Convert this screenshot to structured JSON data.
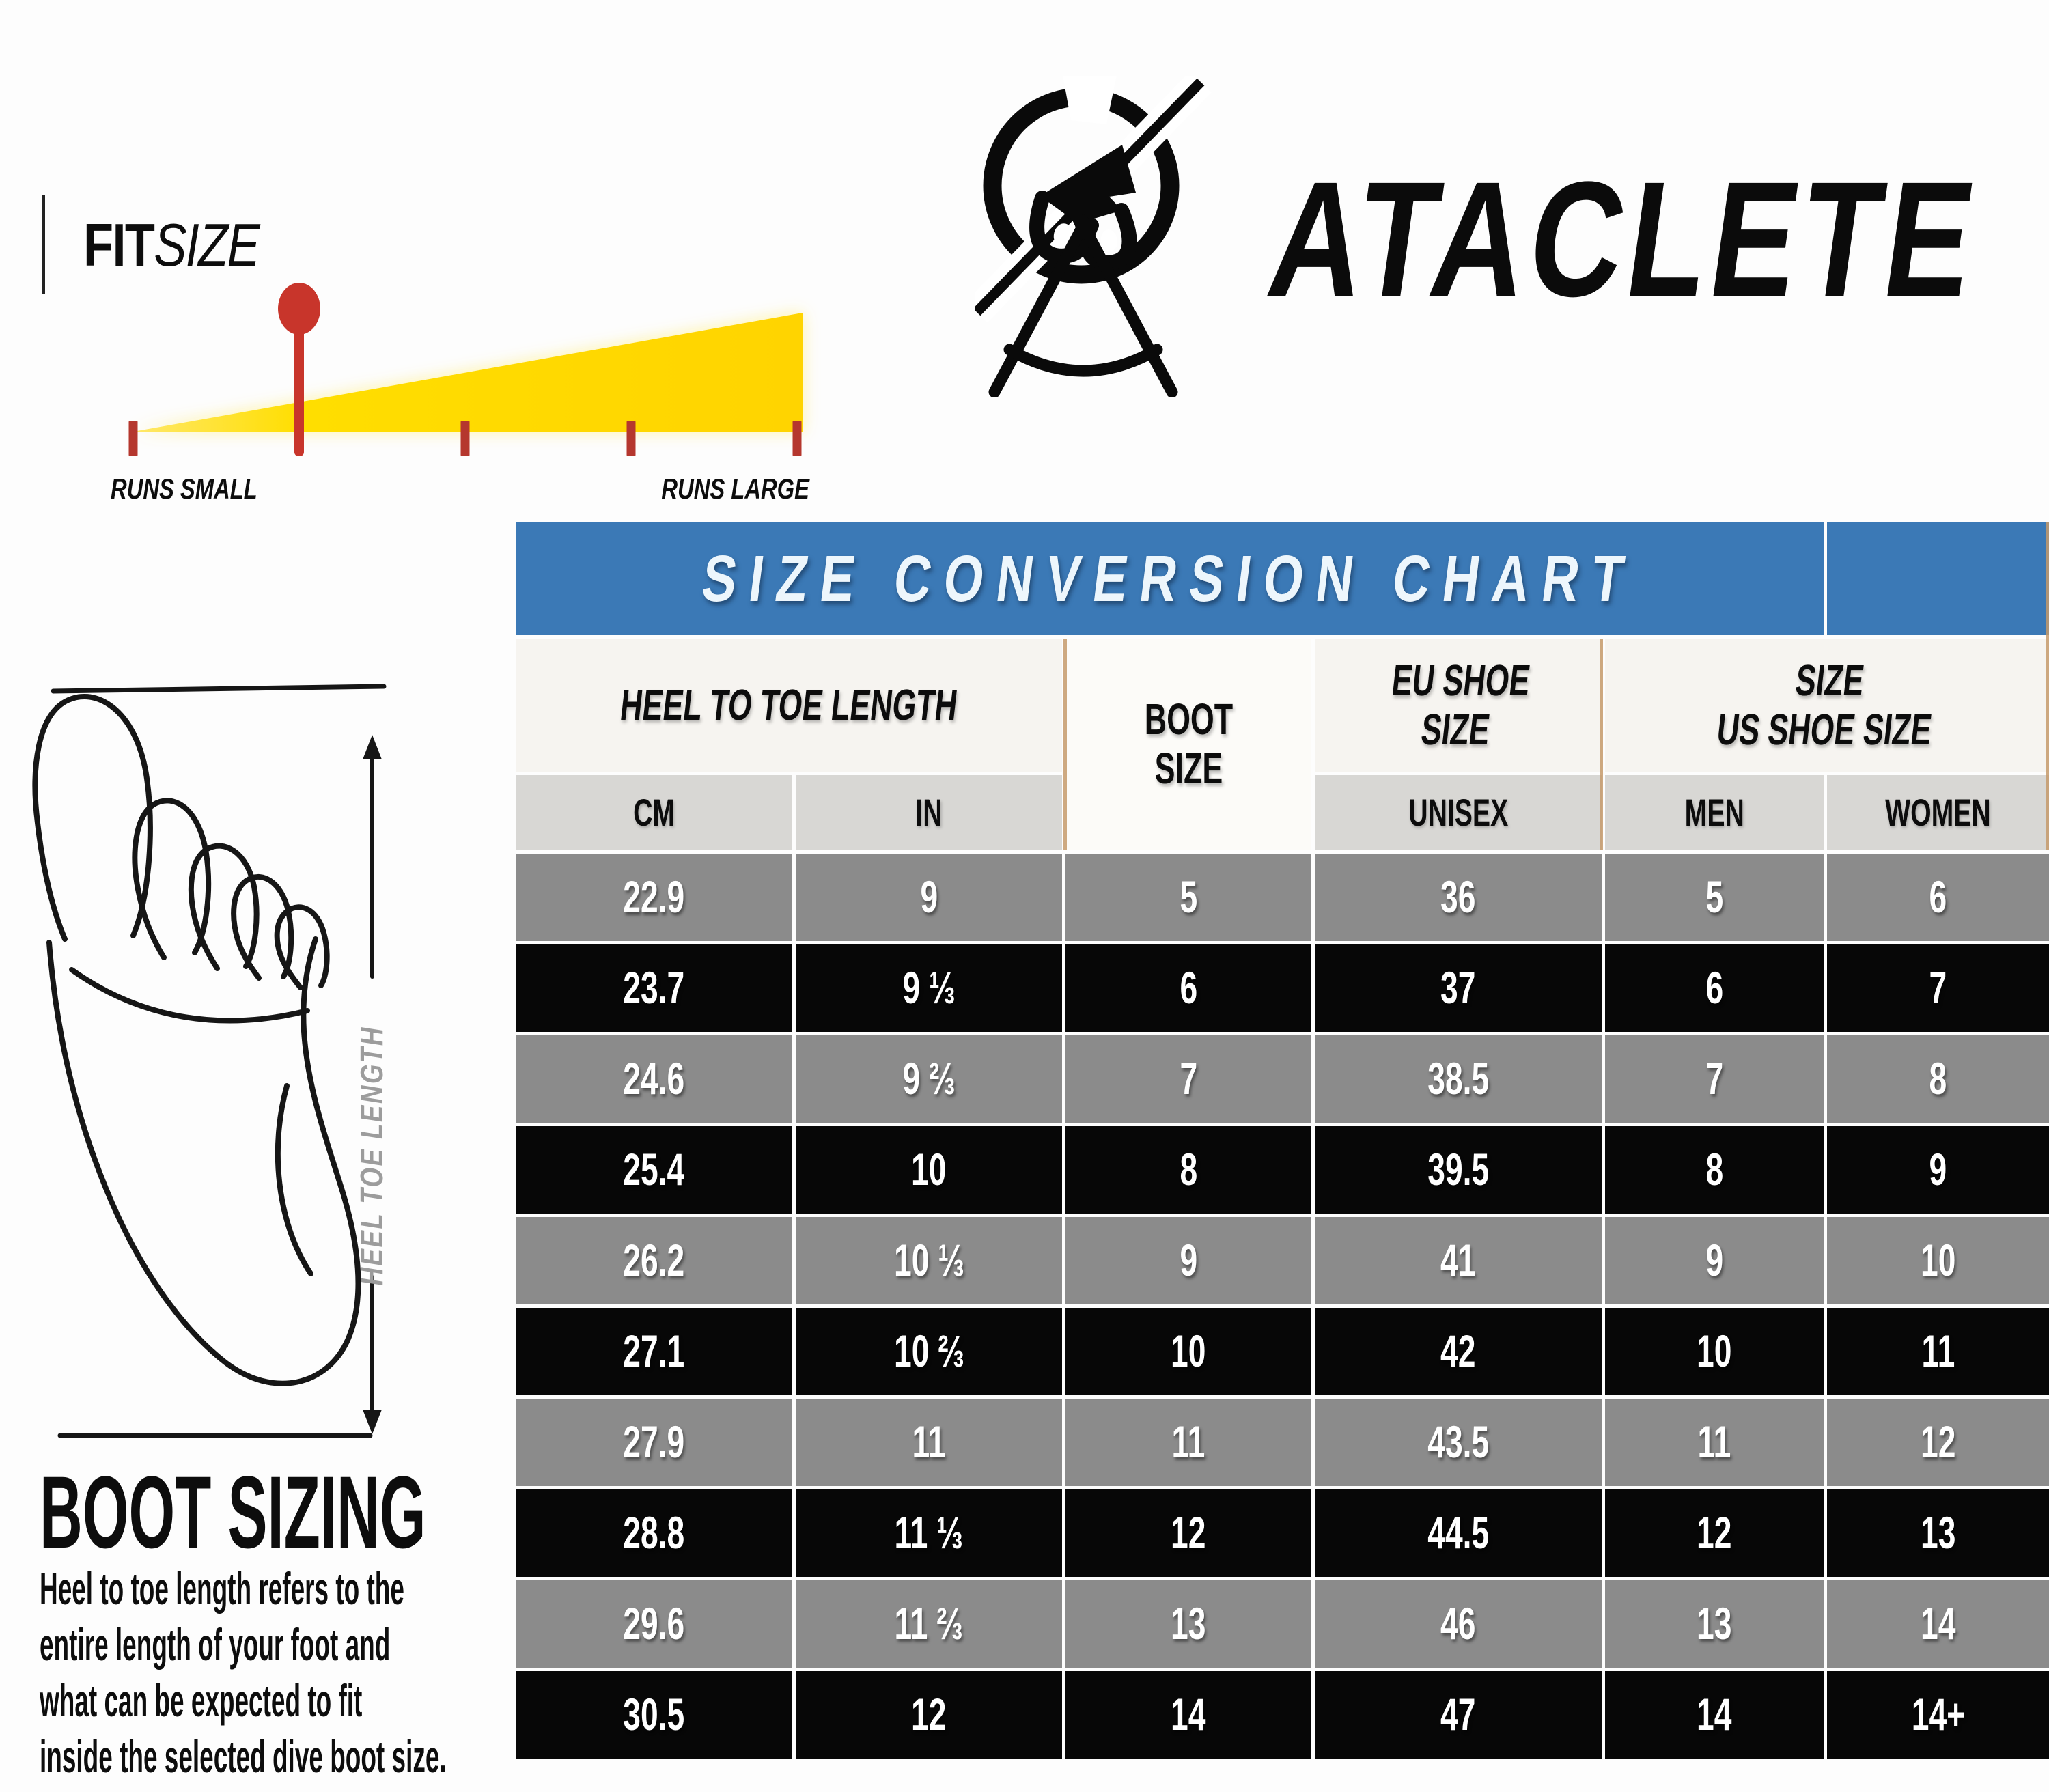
{
  "fit_gauge": {
    "title_bold": "FIT",
    "title_light": "SIZE",
    "left_label": "RUNS SMALL",
    "right_label": "RUNS LARGE",
    "tick_count": 5,
    "marker_tick_index": 1,
    "colors": {
      "triangle": "#FFDE00",
      "marker": "#C8352B",
      "ticks": "#B5372E"
    }
  },
  "brand": {
    "name": "ATACLETE"
  },
  "foot_diagram": {
    "dimension_label": "HEEL TOE LENGTH"
  },
  "boot_sizing": {
    "heading": "BOOT SIZING",
    "description": "Heel to toe length refers to the\nentire length of your foot and\nwhat can be expected to fit\ninside the selected dive boot size."
  },
  "chart": {
    "headers": {
      "heel_to_toe": "HEEL TO TOE LENGTH",
      "boot_size": "BOOT\nSIZE",
      "eu_shoe_size": "EU SHOE\nSIZE",
      "us_shoe_size": "SIZE\nUS SHOE SIZE"
    },
    "subheaders": {
      "cm": "CM",
      "in": "IN",
      "unisex": "UNISEX",
      "men": "MEN",
      "women": "WOMEN"
    },
    "colors": {
      "banner_blue": "#3B79B6",
      "header_bg": "#F6F4F0",
      "subheader_bg": "#D8D7D4",
      "gray_row": "#8B8B8B",
      "black_row": "#070707",
      "text_on_rows": "#FFFFFF"
    }
  },
  "chart_data": {
    "type": "table",
    "title": "SIZE CONVERSION CHART",
    "column_groups": [
      {
        "label": "HEEL TO TOE LENGTH",
        "columns": [
          "CM",
          "IN"
        ]
      },
      {
        "label": "BOOT SIZE",
        "columns": [
          "BOOT SIZE"
        ]
      },
      {
        "label": "EU SHOE SIZE",
        "columns": [
          "UNISEX"
        ]
      },
      {
        "label": "SIZE US SHOE SIZE",
        "columns": [
          "MEN",
          "WOMEN"
        ]
      }
    ],
    "columns": [
      "CM",
      "IN",
      "BOOT SIZE",
      "EU UNISEX",
      "US MEN",
      "US WOMEN"
    ],
    "rows": [
      [
        "22.9",
        "9",
        "5",
        "36",
        "5",
        "6"
      ],
      [
        "23.7",
        "9 ⅓",
        "6",
        "37",
        "6",
        "7"
      ],
      [
        "24.6",
        "9 ⅔",
        "7",
        "38.5",
        "7",
        "8"
      ],
      [
        "25.4",
        "10",
        "8",
        "39.5",
        "8",
        "9"
      ],
      [
        "26.2",
        "10 ⅓",
        "9",
        "41",
        "9",
        "10"
      ],
      [
        "27.1",
        "10 ⅔",
        "10",
        "42",
        "10",
        "11"
      ],
      [
        "27.9",
        "11",
        "11",
        "43.5",
        "11",
        "12"
      ],
      [
        "28.8",
        "11 ⅓",
        "12",
        "44.5",
        "12",
        "13"
      ],
      [
        "29.6",
        "11 ⅔",
        "13",
        "46",
        "13",
        "14"
      ],
      [
        "30.5",
        "12",
        "14",
        "47",
        "14",
        "14+"
      ]
    ],
    "row_shading_alternates": [
      "gray",
      "black"
    ],
    "legend_position": "none",
    "grid": "white separators"
  }
}
